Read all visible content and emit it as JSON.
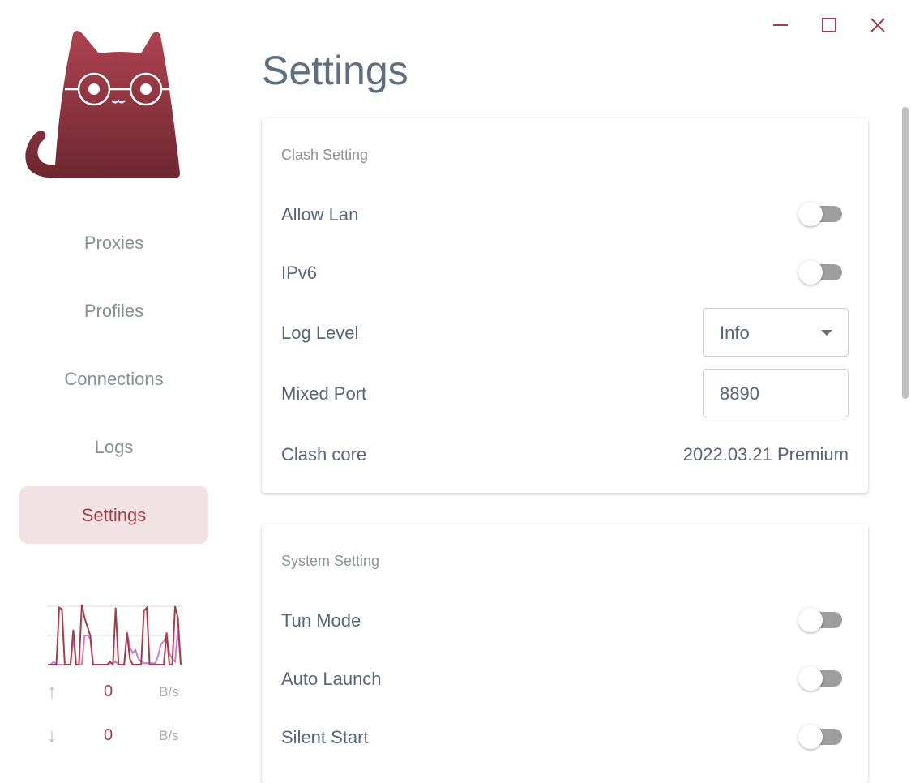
{
  "app": {
    "brand_color": "#a33c49"
  },
  "window_controls": {
    "minimize_icon": "minimize-icon",
    "maximize_icon": "maximize-icon",
    "close_icon": "close-icon"
  },
  "sidebar": {
    "items": [
      {
        "label": "Proxies",
        "active": false
      },
      {
        "label": "Profiles",
        "active": false
      },
      {
        "label": "Connections",
        "active": false
      },
      {
        "label": "Logs",
        "active": false
      },
      {
        "label": "Settings",
        "active": true
      }
    ],
    "traffic": {
      "upload": {
        "value": "0",
        "unit": "B/s",
        "icon": "arrow-up-icon"
      },
      "download": {
        "value": "0",
        "unit": "B/s",
        "icon": "arrow-down-icon"
      },
      "chart_data": {
        "type": "line",
        "ylim": [
          0,
          2
        ],
        "series": [
          {
            "color": "#a83d49",
            "values": [
              0,
              0,
              0,
              0,
              1.95,
              1.9,
              0,
              0,
              0,
              1.2,
              0,
              0,
              2.05,
              1.6,
              1.3,
              1.0,
              0,
              0,
              0,
              0,
              0,
              0,
              0.1,
              0,
              1.95,
              0,
              0,
              0,
              1.1,
              0.2,
              0,
              0,
              0,
              0,
              1.85,
              1.95,
              0,
              0,
              0,
              0,
              0,
              0,
              1.1,
              0,
              0,
              2.0,
              1.6,
              0
            ]
          },
          {
            "color": "#c77fd4",
            "values": [
              0,
              0,
              0.1,
              0,
              0,
              0,
              0,
              0,
              0,
              0.9,
              0,
              0,
              0,
              1.0,
              1.0,
              0.9,
              0,
              0,
              0,
              0,
              0,
              0,
              0.05,
              0.05,
              0.1,
              0,
              0,
              0,
              1.1,
              0.6,
              0.4,
              0.5,
              0.2,
              0.1,
              0.05,
              0.05,
              0.05,
              0.05,
              0.05,
              0.3,
              0.7,
              0.8,
              1.0,
              0.4,
              0.2,
              0.1,
              1.2,
              0
            ]
          }
        ]
      }
    }
  },
  "main": {
    "title": "Settings",
    "clash_setting": {
      "title": "Clash Setting",
      "allow_lan": {
        "label": "Allow Lan",
        "on": false
      },
      "ipv6": {
        "label": "IPv6",
        "on": false
      },
      "log_level": {
        "label": "Log Level",
        "value": "Info"
      },
      "mixed_port": {
        "label": "Mixed Port",
        "value": "8890"
      },
      "clash_core": {
        "label": "Clash core",
        "value": "2022.03.21 Premium"
      }
    },
    "system_setting": {
      "title": "System Setting",
      "tun_mode": {
        "label": "Tun Mode",
        "on": false
      },
      "auto_launch": {
        "label": "Auto Launch",
        "on": false
      },
      "silent_start": {
        "label": "Silent Start",
        "on": false
      }
    }
  }
}
